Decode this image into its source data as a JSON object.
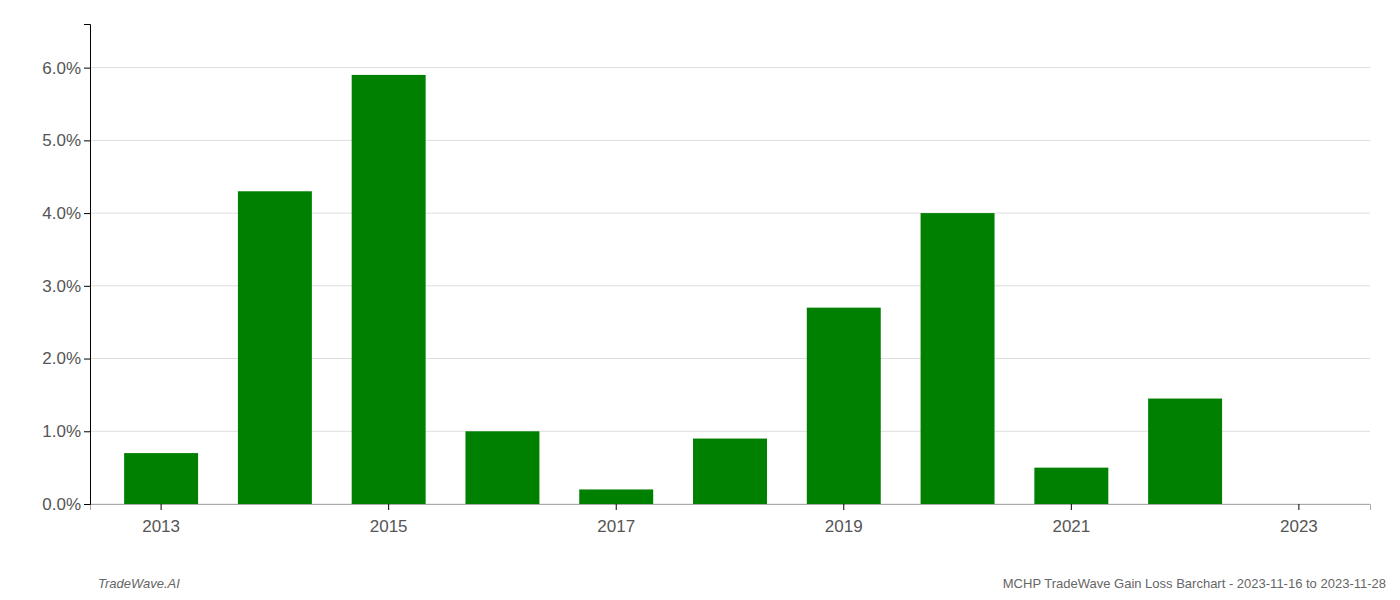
{
  "chart_data": {
    "type": "bar",
    "title": "MCHP TradeWave Gain Loss Barchart - 2023-11-16 to 2023-11-28",
    "annotations": [
      "TradeWave.AI"
    ],
    "categories": [
      "2013",
      null,
      "2015",
      null,
      "2017",
      null,
      "2019",
      null,
      "2021",
      null,
      "2023"
    ],
    "values": [
      0.007,
      0.043,
      0.059,
      0.01,
      0.002,
      0.009,
      0.027,
      0.04,
      0.005,
      0.0145,
      0.0
    ],
    "color": "#008000",
    "ylim": [
      0,
      0.066
    ],
    "yticks": [
      {
        "value": 0.0,
        "label": "0.0%"
      },
      {
        "value": 0.01,
        "label": "1.0%"
      },
      {
        "value": 0.02,
        "label": "2.0%"
      },
      {
        "value": 0.03,
        "label": "3.0%"
      },
      {
        "value": 0.04,
        "label": "4.0%"
      },
      {
        "value": 0.05,
        "label": "5.0%"
      },
      {
        "value": 0.06,
        "label": "6.0%"
      }
    ],
    "grid": true
  }
}
